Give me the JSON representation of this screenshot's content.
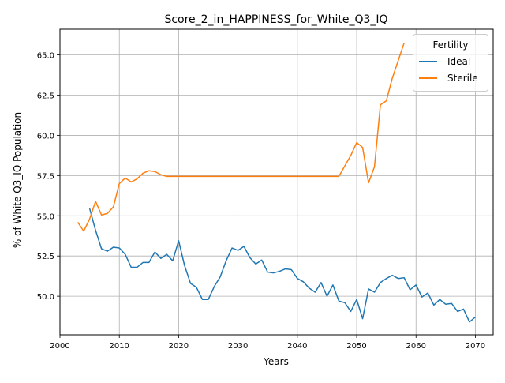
{
  "chart_data": {
    "type": "line",
    "title": "Score_2_in_HAPPINESS_for_White_Q3_IQ",
    "xlabel": "Years",
    "ylabel": "% of White Q3_IQ Population",
    "xlim": [
      2000,
      2073
    ],
    "ylim": [
      47.6,
      66.6
    ],
    "xticks": [
      2000,
      2010,
      2020,
      2030,
      2040,
      2050,
      2060,
      2070
    ],
    "yticks": [
      50.0,
      52.5,
      55.0,
      57.5,
      60.0,
      62.5,
      65.0
    ],
    "ytick_labels": [
      "50.0",
      "52.5",
      "55.0",
      "57.5",
      "60.0",
      "62.5",
      "65.0"
    ],
    "grid": true,
    "legend": {
      "title": "Fertility",
      "placement": "top-right"
    },
    "series": [
      {
        "name": "Ideal",
        "color": "#1f77b4",
        "x": [
          2005,
          2006,
          2007,
          2008,
          2009,
          2010,
          2011,
          2012,
          2013,
          2014,
          2015,
          2016,
          2017,
          2018,
          2019,
          2020,
          2021,
          2022,
          2023,
          2024,
          2025,
          2026,
          2027,
          2028,
          2029,
          2030,
          2031,
          2032,
          2033,
          2034,
          2035,
          2036,
          2037,
          2038,
          2039,
          2040,
          2041,
          2042,
          2043,
          2044,
          2045,
          2046,
          2047,
          2048,
          2049,
          2050,
          2051,
          2052,
          2053,
          2054,
          2055,
          2056,
          2057,
          2058,
          2059,
          2060,
          2061,
          2062,
          2063,
          2064,
          2065,
          2066,
          2067,
          2068,
          2069,
          2070
        ],
        "values": [
          55.45,
          54.1,
          52.95,
          52.8,
          53.05,
          53.0,
          52.6,
          51.8,
          51.8,
          52.1,
          52.1,
          52.75,
          52.35,
          52.6,
          52.2,
          53.45,
          51.9,
          50.8,
          50.55,
          49.8,
          49.8,
          50.6,
          51.2,
          52.2,
          53.0,
          52.85,
          53.1,
          52.4,
          52.0,
          52.25,
          51.5,
          51.45,
          51.55,
          51.7,
          51.65,
          51.1,
          50.9,
          50.5,
          50.25,
          50.85,
          50.0,
          50.7,
          49.7,
          49.6,
          49.05,
          49.8,
          48.6,
          50.45,
          50.25,
          50.85,
          51.1,
          51.3,
          51.1,
          51.15,
          50.4,
          50.7,
          49.95,
          50.2,
          49.45,
          49.8,
          49.5,
          49.55,
          49.05,
          49.2,
          48.4,
          48.7
        ]
      },
      {
        "name": "Sterile",
        "color": "#ff7f0e",
        "x": [
          2003,
          2004,
          2005,
          2006,
          2007,
          2008,
          2009,
          2010,
          2011,
          2012,
          2013,
          2014,
          2015,
          2016,
          2017,
          2018,
          2019,
          2020,
          2025,
          2030,
          2035,
          2040,
          2045,
          2047,
          2048,
          2049,
          2050,
          2051,
          2052,
          2053,
          2054,
          2055,
          2056,
          2057,
          2058
        ],
        "values": [
          54.6,
          54.05,
          54.8,
          55.9,
          55.05,
          55.15,
          55.55,
          57.0,
          57.35,
          57.1,
          57.3,
          57.65,
          57.8,
          57.75,
          57.55,
          57.45,
          57.45,
          57.45,
          57.45,
          57.45,
          57.45,
          57.45,
          57.45,
          57.45,
          58.1,
          58.75,
          59.55,
          59.25,
          57.05,
          58.05,
          61.9,
          62.15,
          63.55,
          64.65,
          65.75
        ]
      }
    ]
  }
}
